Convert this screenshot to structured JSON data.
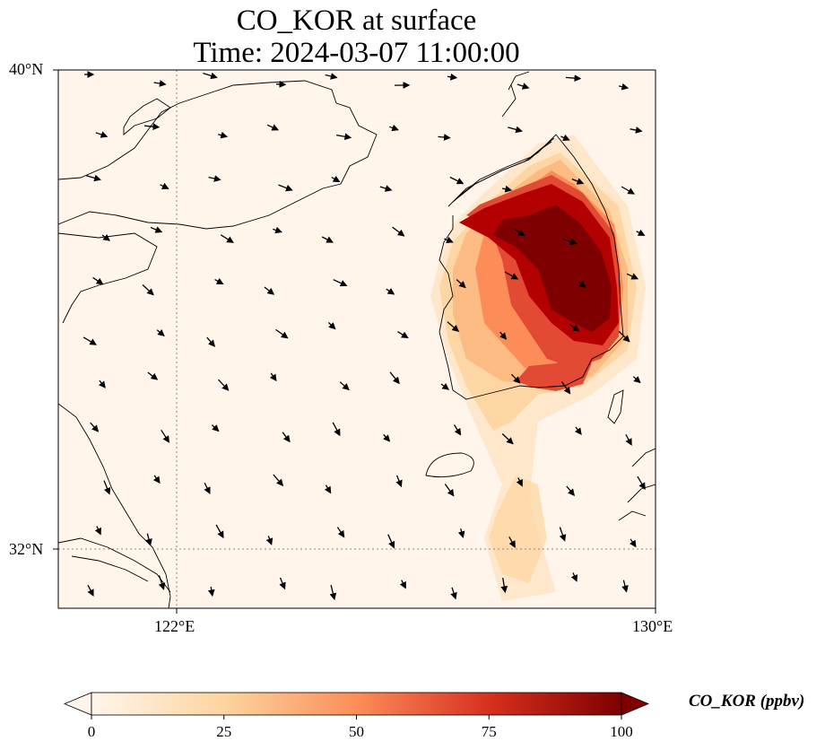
{
  "title": {
    "line1": "CO_KOR at surface",
    "line2": "Time: 2024-03-07 11:00:00"
  },
  "map": {
    "projection": "lat-lon",
    "extent": {
      "lon_min": 119.5,
      "lon_max": 130,
      "lat_min": 31,
      "lat_max": 40
    },
    "lat_ticks": [
      "40°N",
      "32°N"
    ],
    "lon_ticks": [
      "122°E",
      "130°E"
    ],
    "gridlines": "dotted at 122°E and 32°N",
    "background_color": "#fff5eb",
    "colormap": "OrRd",
    "field_name": "CO_KOR",
    "wind_vectors": true
  },
  "colorbar": {
    "label": "CO_KOR (ppbv)",
    "min": 0,
    "max": 100,
    "ticks": [
      "0",
      "25",
      "50",
      "75",
      "100"
    ],
    "extend": "both",
    "colors": [
      "#fff5eb",
      "#fdd49e",
      "#fc8d59",
      "#d7301f",
      "#7f0000"
    ]
  }
}
